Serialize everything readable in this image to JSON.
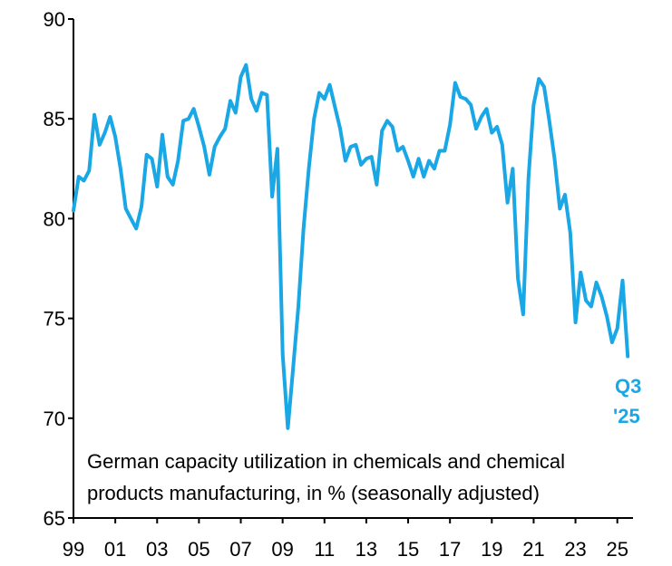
{
  "chart_data": {
    "type": "line",
    "title": "",
    "caption_lines": [
      "German capacity utilization in chemicals and chemical",
      "products manufacturing, in % (seasonally adjusted)"
    ],
    "xlabel": "",
    "ylabel": "",
    "ylim": [
      65,
      90
    ],
    "yticks": [
      "65",
      "70",
      "75",
      "80",
      "85",
      "90"
    ],
    "xlim": [
      1999,
      2025.75
    ],
    "xticks": [
      "99",
      "01",
      "03",
      "05",
      "07",
      "09",
      "11",
      "13",
      "15",
      "17",
      "19",
      "21",
      "23",
      "25"
    ],
    "grid": false,
    "legend": "none",
    "end_label": [
      "Q3",
      "'25"
    ],
    "series": [
      {
        "x": [
          1999.0,
          1999.25,
          1999.5,
          1999.75,
          2000.0,
          2000.25,
          2000.5,
          2000.75,
          2001.0,
          2001.25,
          2001.5,
          2001.75,
          2002.0,
          2002.25,
          2002.5,
          2002.75,
          2003.0,
          2003.25,
          2003.5,
          2003.75,
          2004.0,
          2004.25,
          2004.5,
          2004.75,
          2005.0,
          2005.25,
          2005.5,
          2005.75,
          2006.0,
          2006.25,
          2006.5,
          2006.75,
          2007.0,
          2007.25,
          2007.5,
          2007.75,
          2008.0,
          2008.25,
          2008.5,
          2008.75,
          2009.0,
          2009.25,
          2009.5,
          2009.75,
          2010.0,
          2010.25,
          2010.5,
          2010.75,
          2011.0,
          2011.25,
          2011.5,
          2011.75,
          2012.0,
          2012.25,
          2012.5,
          2012.75,
          2013.0,
          2013.25,
          2013.5,
          2013.75,
          2014.0,
          2014.25,
          2014.5,
          2014.75,
          2015.0,
          2015.25,
          2015.5,
          2015.75,
          2016.0,
          2016.25,
          2016.5,
          2016.75,
          2017.0,
          2017.25,
          2017.5,
          2017.75,
          2018.0,
          2018.25,
          2018.5,
          2018.75,
          2019.0,
          2019.25,
          2019.5,
          2019.75,
          2020.0,
          2020.25,
          2020.5,
          2020.75,
          2021.0,
          2021.25,
          2021.5,
          2021.75,
          2022.0,
          2022.25,
          2022.5,
          2022.75,
          2023.0,
          2023.25,
          2023.5,
          2023.75,
          2024.0,
          2024.25,
          2024.5,
          2024.75,
          2025.0,
          2025.25,
          2025.5
        ],
        "y": [
          80.4,
          82.1,
          81.9,
          82.4,
          85.2,
          83.7,
          84.3,
          85.1,
          84.1,
          82.5,
          80.5,
          80.0,
          79.5,
          80.6,
          83.2,
          83.0,
          81.6,
          84.2,
          82.1,
          81.7,
          82.9,
          84.9,
          85.0,
          85.5,
          84.6,
          83.6,
          82.2,
          83.6,
          84.1,
          84.5,
          85.9,
          85.3,
          87.1,
          87.7,
          86.0,
          85.4,
          86.3,
          86.2,
          81.1,
          83.5,
          73.2,
          69.5,
          72.5,
          75.6,
          79.5,
          82.5,
          85.0,
          86.3,
          86.0,
          86.7,
          85.6,
          84.5,
          82.9,
          83.6,
          83.7,
          82.7,
          83.0,
          83.1,
          81.7,
          84.4,
          84.9,
          84.6,
          83.4,
          83.6,
          82.9,
          82.1,
          83.0,
          82.1,
          82.9,
          82.5,
          83.4,
          83.4,
          84.7,
          86.8,
          86.1,
          86.0,
          85.7,
          84.5,
          85.1,
          85.5,
          84.3,
          84.6,
          83.7,
          80.8,
          82.5,
          77.0,
          75.2,
          82.0,
          85.7,
          87.0,
          86.6,
          84.9,
          83.0,
          80.5,
          81.2,
          79.3,
          74.8,
          77.3,
          75.9,
          75.6,
          76.8,
          76.1,
          75.1,
          73.8,
          74.5,
          76.9,
          73.1
        ],
        "color": "#1aa7e6"
      }
    ]
  }
}
